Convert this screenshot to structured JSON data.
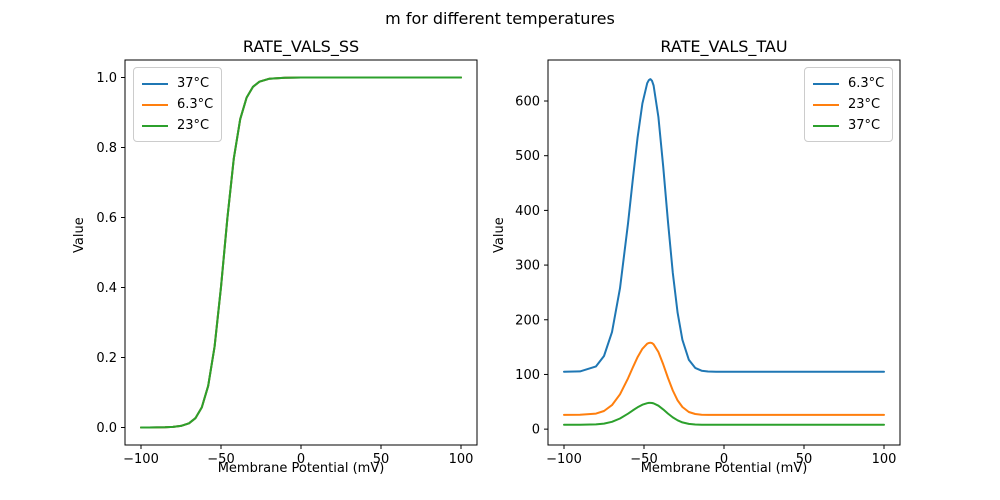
{
  "figure": {
    "suptitle": "m for different temperatures",
    "background_color": "#ffffff",
    "axis_color": "#000000"
  },
  "chart_data": [
    {
      "type": "line",
      "title": "RATE_VALS_SS",
      "xlabel": "Membrane Potential (mV)",
      "ylabel": "Value",
      "xlim": [
        -110,
        110
      ],
      "ylim": [
        -0.05,
        1.05
      ],
      "grid": false,
      "xticks": [
        -100,
        -50,
        0,
        50,
        100
      ],
      "xtick_labels": [
        "−100",
        "−50",
        "0",
        "50",
        "100"
      ],
      "yticks": [
        0.0,
        0.2,
        0.4,
        0.6,
        0.8,
        1.0
      ],
      "ytick_labels": [
        "0.0",
        "0.2",
        "0.4",
        "0.6",
        "0.8",
        "1.0"
      ],
      "legend": {
        "position": "upper-left",
        "entries": [
          {
            "label": "37°C",
            "color": "#1f77b4"
          },
          {
            "label": "6.3°C",
            "color": "#ff7f0e"
          },
          {
            "label": "23°C",
            "color": "#2ca02c"
          }
        ]
      },
      "x": [
        -100,
        -95,
        -90,
        -85,
        -80,
        -75,
        -70,
        -66,
        -62,
        -58,
        -54,
        -50,
        -48,
        -46,
        -42,
        -38,
        -34,
        -30,
        -26,
        -20,
        -10,
        0,
        20,
        40,
        60,
        80,
        100
      ],
      "series": [
        {
          "name": "37°C",
          "color": "#1f77b4",
          "values": [
            0.0,
            0.0001,
            0.0002,
            0.0006,
            0.0017,
            0.0045,
            0.0121,
            0.0266,
            0.0573,
            0.1192,
            0.2315,
            0.4013,
            0.5,
            0.5987,
            0.7685,
            0.8808,
            0.9427,
            0.9734,
            0.9879,
            0.9963,
            0.9995,
            1.0,
            1.0,
            1.0,
            1.0,
            1.0,
            1.0
          ]
        },
        {
          "name": "6.3°C",
          "color": "#ff7f0e",
          "values": [
            0.0,
            0.0001,
            0.0002,
            0.0006,
            0.0017,
            0.0045,
            0.0121,
            0.0266,
            0.0573,
            0.1192,
            0.2315,
            0.4013,
            0.5,
            0.5987,
            0.7685,
            0.8808,
            0.9427,
            0.9734,
            0.9879,
            0.9963,
            0.9995,
            1.0,
            1.0,
            1.0,
            1.0,
            1.0,
            1.0
          ]
        },
        {
          "name": "23°C",
          "color": "#2ca02c",
          "values": [
            0.0,
            0.0001,
            0.0002,
            0.0006,
            0.0017,
            0.0045,
            0.0121,
            0.0266,
            0.0573,
            0.1192,
            0.2315,
            0.4013,
            0.5,
            0.5987,
            0.7685,
            0.8808,
            0.9427,
            0.9734,
            0.9879,
            0.9963,
            0.9995,
            1.0,
            1.0,
            1.0,
            1.0,
            1.0,
            1.0
          ]
        }
      ]
    },
    {
      "type": "line",
      "title": "RATE_VALS_TAU",
      "xlabel": "Membrane Potential (mV)",
      "ylabel": "Value",
      "xlim": [
        -110,
        110
      ],
      "ylim": [
        -29,
        675
      ],
      "grid": false,
      "xticks": [
        -100,
        -50,
        0,
        50,
        100
      ],
      "xtick_labels": [
        "−100",
        "−50",
        "0",
        "50",
        "100"
      ],
      "yticks": [
        0,
        100,
        200,
        300,
        400,
        500,
        600
      ],
      "ytick_labels": [
        "0",
        "100",
        "200",
        "300",
        "400",
        "500",
        "600"
      ],
      "legend": {
        "position": "upper-right",
        "entries": [
          {
            "label": "6.3°C",
            "color": "#1f77b4"
          },
          {
            "label": "23°C",
            "color": "#ff7f0e"
          },
          {
            "label": "37°C",
            "color": "#2ca02c"
          }
        ]
      },
      "x": [
        -100,
        -90,
        -80,
        -75,
        -70,
        -65,
        -60,
        -57,
        -54,
        -51,
        -48,
        -47,
        -46,
        -45,
        -44,
        -41,
        -38,
        -35,
        -32,
        -29,
        -26,
        -22,
        -18,
        -14,
        -10,
        -5,
        0,
        10,
        25,
        50,
        75,
        100
      ],
      "series": [
        {
          "name": "6.3°C",
          "color": "#1f77b4",
          "values": [
            105,
            105.6,
            114.7,
            133.8,
            177.4,
            257.7,
            375.9,
            456.5,
            533.4,
            595.5,
            632.6,
            638.1,
            640,
            637,
            628.3,
            570.8,
            480.3,
            378.7,
            285.7,
            212.9,
            163.3,
            127,
            112,
            106.8,
            105.4,
            105.1,
            105,
            105,
            105,
            105,
            105,
            105
          ]
        },
        {
          "name": "23°C",
          "color": "#ff7f0e",
          "values": [
            26,
            26.2,
            28.4,
            33.1,
            43.9,
            63.7,
            92.8,
            112.7,
            131.7,
            147,
            156.2,
            157.5,
            158,
            157.3,
            155.1,
            141,
            118.6,
            93.5,
            70.6,
            52.6,
            40.4,
            31.4,
            27.7,
            26.4,
            26.1,
            26,
            26,
            26,
            26,
            26,
            26,
            26
          ]
        },
        {
          "name": "37°C",
          "color": "#2ca02c",
          "values": [
            8,
            8,
            8.7,
            10.2,
            13.4,
            19.4,
            28.3,
            34.3,
            40,
            44.7,
            47.4,
            47.9,
            48,
            47.8,
            47.1,
            42.8,
            36.1,
            28.5,
            21.5,
            16.1,
            12.4,
            9.6,
            8.5,
            8.1,
            8,
            8,
            8,
            8,
            8,
            8,
            8,
            8
          ]
        }
      ]
    }
  ]
}
